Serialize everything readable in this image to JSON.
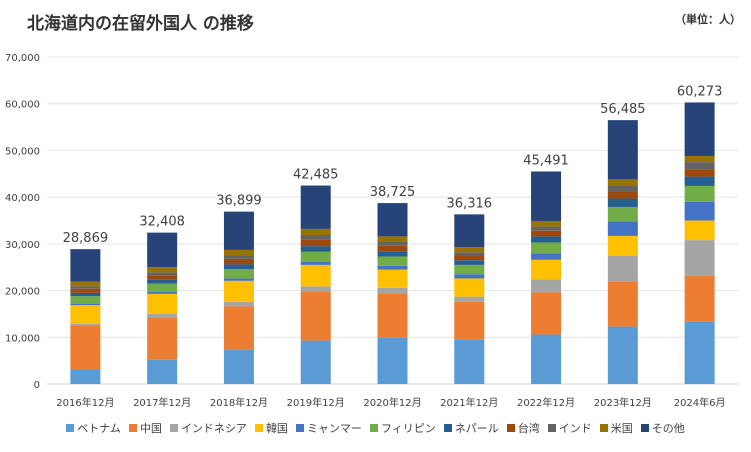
{
  "title": "北海道内の在留外国人 の推移",
  "unit_label": "（単位：人）",
  "chart_data": {
    "type": "bar",
    "stacked": true,
    "categories": [
      "2016年12月",
      "2017年12月",
      "2018年12月",
      "2019年12月",
      "2020年12月",
      "2021年12月",
      "2022年12月",
      "2023年12月",
      "2024年6月"
    ],
    "totals": [
      28869,
      32408,
      36899,
      42485,
      38725,
      36316,
      45491,
      56485,
      60273
    ],
    "total_labels": [
      "28,869",
      "32,408",
      "36,899",
      "42,485",
      "38,725",
      "36,316",
      "45,491",
      "56,485",
      "60,273"
    ],
    "ylim": [
      0,
      70000
    ],
    "yticks": [
      0,
      10000,
      20000,
      30000,
      40000,
      50000,
      60000,
      70000
    ],
    "ytick_labels": [
      "0",
      "10,000",
      "20,000",
      "30,000",
      "40,000",
      "50,000",
      "60,000",
      "70,000"
    ],
    "grid": true,
    "legend_position": "bottom",
    "series": [
      {
        "name": "ベトナム",
        "color": "#5B9BD5",
        "values": [
          3200,
          5300,
          7300,
          9300,
          10000,
          9600,
          10600,
          12300,
          13300
        ]
      },
      {
        "name": "中国",
        "color": "#ED7D31",
        "values": [
          9400,
          9000,
          9300,
          10400,
          9400,
          8000,
          9000,
          9700,
          9900
        ]
      },
      {
        "name": "インドネシア",
        "color": "#A5A5A5",
        "values": [
          300,
          700,
          1000,
          1200,
          1200,
          1100,
          2800,
          5400,
          7600
        ]
      },
      {
        "name": "韓国",
        "color": "#FFC000",
        "values": [
          4000,
          4300,
          4500,
          4600,
          3900,
          3900,
          4200,
          4300,
          4200
        ]
      },
      {
        "name": "ミャンマー",
        "color": "#4472C4",
        "values": [
          300,
          400,
          500,
          700,
          800,
          900,
          1400,
          3100,
          4000
        ]
      },
      {
        "name": "フィリピン",
        "color": "#70AD47",
        "values": [
          1600,
          1800,
          2000,
          2100,
          2000,
          2000,
          2300,
          3100,
          3400
        ]
      },
      {
        "name": "ネパール",
        "color": "#255E91",
        "values": [
          700,
          800,
          1000,
          1200,
          1100,
          1000,
          1300,
          1800,
          2000
        ]
      },
      {
        "name": "台湾",
        "color": "#9E480E",
        "values": [
          900,
          1000,
          1200,
          1500,
          1200,
          1000,
          1200,
          1500,
          1600
        ]
      },
      {
        "name": "インド",
        "color": "#636363",
        "values": [
          500,
          600,
          700,
          900,
          800,
          700,
          900,
          1300,
          1500
        ]
      },
      {
        "name": "米国",
        "color": "#997300",
        "values": [
          1000,
          1100,
          1200,
          1300,
          1200,
          1100,
          1200,
          1300,
          1300
        ]
      },
      {
        "name": "その他",
        "color": "#264478",
        "values": [
          6969,
          7408,
          8199,
          9285,
          7125,
          7016,
          10591,
          12685,
          11473
        ]
      }
    ]
  }
}
